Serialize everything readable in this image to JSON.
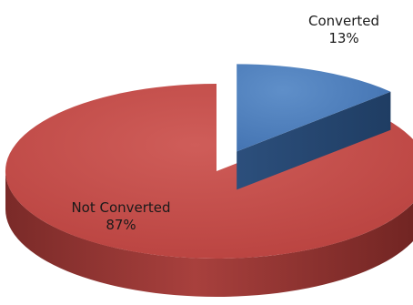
{
  "chart_data": {
    "type": "pie",
    "style": "3d-exploded",
    "title": "",
    "slices": [
      {
        "name": "Converted",
        "value": 13,
        "percent_label": "13%",
        "color": "#4f81bd",
        "exploded": true
      },
      {
        "name": "Not Converted",
        "value": 87,
        "percent_label": "87%",
        "color": "#c0504d",
        "exploded": false
      }
    ]
  }
}
